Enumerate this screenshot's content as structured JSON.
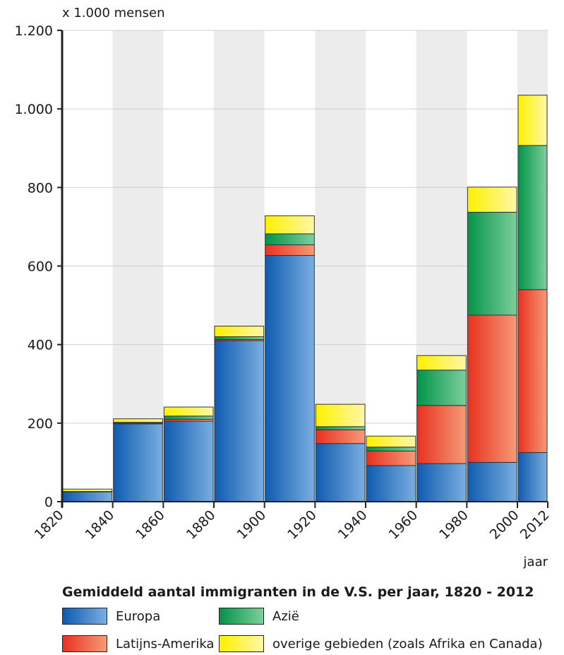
{
  "chart_data": {
    "type": "bar",
    "stacked": true,
    "ylabel": "x 1.000 mensen",
    "xlabel": "jaar",
    "ylim": [
      0,
      1200
    ],
    "yticks": [
      0,
      200,
      400,
      600,
      800,
      1000,
      1200
    ],
    "ytick_labels": [
      "0",
      "200",
      "400",
      "600",
      "800",
      "1.000",
      "1.200"
    ],
    "xticks": [
      "1820",
      "1840",
      "1860",
      "1880",
      "1900",
      "1920",
      "1940",
      "1960",
      "1980",
      "2000",
      "2012"
    ],
    "periods": [
      "1820-1840",
      "1840-1860",
      "1860-1880",
      "1880-1900",
      "1900-1920",
      "1920-1940",
      "1940-1960",
      "1960-1980",
      "1980-2000",
      "2000-2012"
    ],
    "series": [
      {
        "name": "Europa",
        "key": "europa",
        "color": "#2d7ac8",
        "values": [
          25,
          198,
          205,
          410,
          627,
          148,
          92,
          97,
          100,
          125
        ]
      },
      {
        "name": "Latijns-Amerika",
        "key": "latijns",
        "color": "#e8412c",
        "values": [
          1,
          2,
          5,
          3,
          27,
          35,
          37,
          148,
          375,
          415
        ]
      },
      {
        "name": "Azië",
        "key": "azie",
        "color": "#13a35a",
        "values": [
          0,
          2,
          8,
          7,
          28,
          8,
          10,
          90,
          262,
          367
        ]
      },
      {
        "name": "overige gebieden (zoals Afrika en Canada)",
        "key": "overig",
        "color": "#f3e81c",
        "values": [
          6,
          9,
          23,
          27,
          46,
          57,
          28,
          37,
          64,
          128
        ]
      }
    ],
    "title": "Gemiddeld aantal immigranten in de V.S. per jaar, 1820 - 2012"
  },
  "legend": {
    "europa": "Europa",
    "azie": "Azië",
    "latijns": "Latijns-Amerika",
    "overig": "overige gebieden (zoals Afrika en Canada)"
  }
}
